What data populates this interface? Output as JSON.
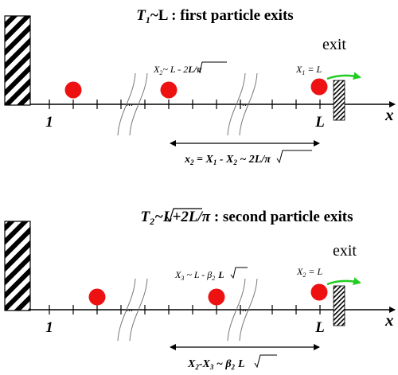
{
  "colors": {
    "particle": "#ee1111",
    "arrow": "#22cc22",
    "ink": "#000000"
  },
  "top": {
    "title_a": "T",
    "title_a_sub": "1",
    "title_b": "~L : first particle exits",
    "exit_label": "exit",
    "tick_start": "1",
    "tick_end": "L",
    "axis": "x",
    "dots": "...",
    "label_x2_pre": "X",
    "label_x2_sub": "2",
    "label_x2_post": "~ L - 2",
    "label_x2_sqrt": "L/π",
    "label_x1_pre": "X",
    "label_x1_sub": "1",
    "label_x1_post": " = L",
    "span_a": "x",
    "span_a_sub": "2",
    "span_b": " = X",
    "span_b_sub": "1",
    "span_c": " - X",
    "span_c_sub": "2",
    "span_d": " ~ 2",
    "span_sqrt": "L/π"
  },
  "bottom": {
    "title_a": "T",
    "title_a_sub": "2",
    "title_b": "~L+2",
    "title_sqrt": "L/π",
    "title_c": "  : second particle exits",
    "exit_label": "exit",
    "tick_start": "1",
    "tick_end": "L",
    "axis": "x",
    "dots": "...",
    "label_x3_pre": "X",
    "label_x3_sub": "3",
    "label_x3_post": " ~ L - β",
    "label_x3_beta_sub": "2",
    "label_x3_sqrt": "L",
    "label_x2_pre": "X",
    "label_x2_sub": "2",
    "label_x2_post": " = L",
    "span_a": "X",
    "span_a_sub": "2",
    "span_b": "-X",
    "span_b_sub": "3",
    "span_c": " ~ β",
    "span_c_sub": "2",
    "span_sqrt": "L"
  }
}
